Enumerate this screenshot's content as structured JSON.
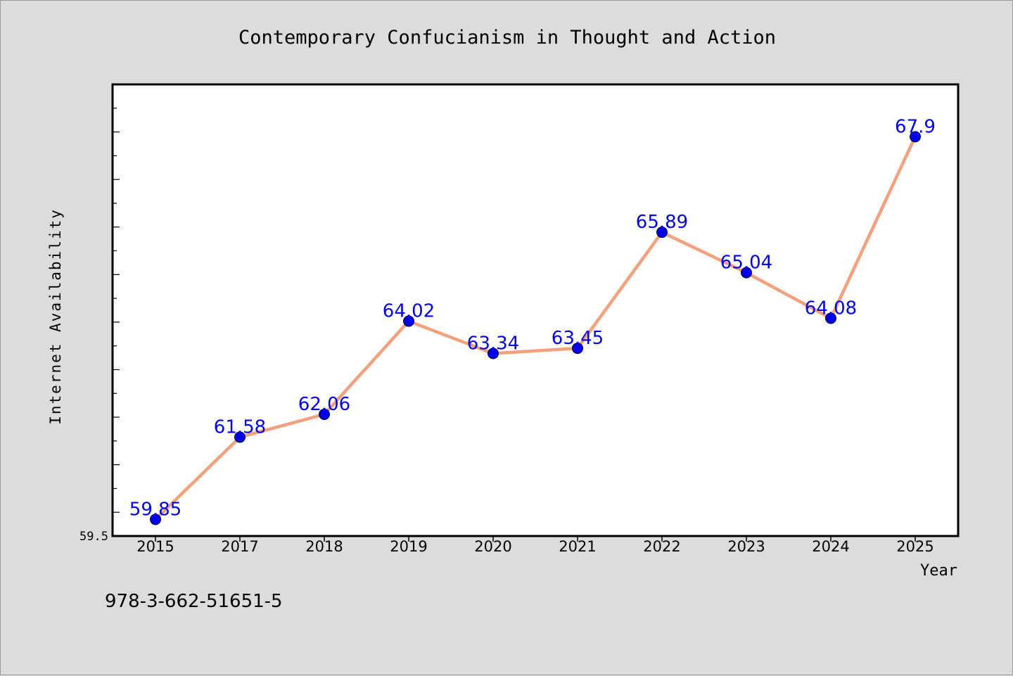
{
  "chart_data": {
    "type": "line",
    "title": "Contemporary Confucianism in Thought and Action",
    "xlabel": "Year",
    "ylabel": "Internet Availability",
    "categories": [
      "2015",
      "2017",
      "2018",
      "2019",
      "2020",
      "2021",
      "2022",
      "2023",
      "2024",
      "2025"
    ],
    "values": [
      59.85,
      61.58,
      62.06,
      64.02,
      63.34,
      63.45,
      65.89,
      65.04,
      64.08,
      67.9
    ],
    "data_labels": [
      "59.85",
      "61.58",
      "62.06",
      "64.02",
      "63.34",
      "63.45",
      "65.89",
      "65.04",
      "64.08",
      "67.9"
    ],
    "ylim": [
      59.5,
      69.0
    ],
    "y_tick_labels": [
      "59.5"
    ],
    "grid": false,
    "line_color": "#f4a07c",
    "marker_color": "#0000ee",
    "label_color": "#0000ee"
  },
  "footer_text": "978-3-662-51651-5"
}
